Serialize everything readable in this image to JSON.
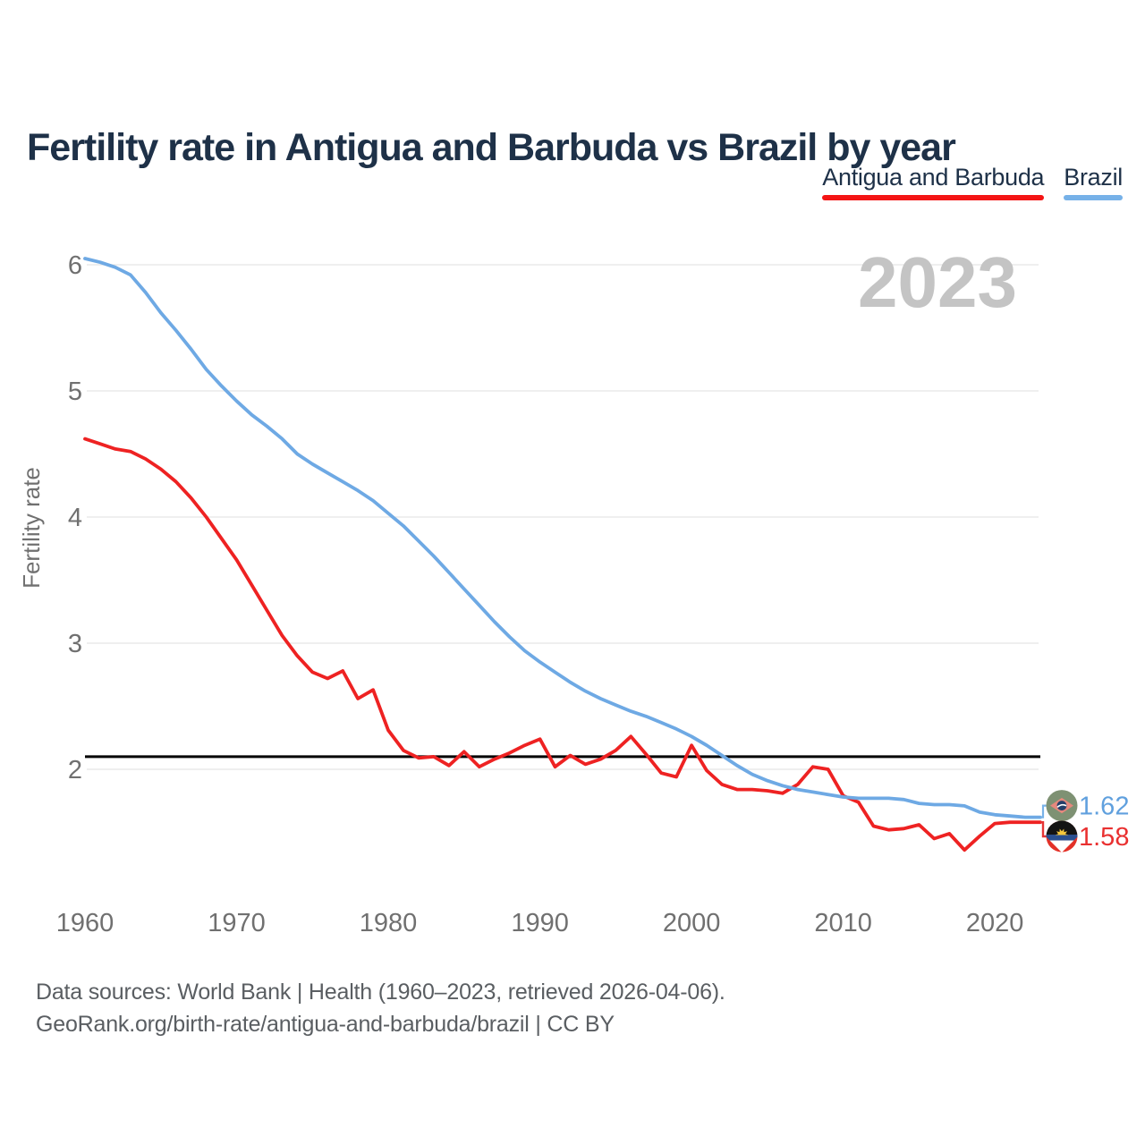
{
  "header": {
    "title": "Fertility rate in Antigua and Barbuda vs Brazil by year"
  },
  "legend": [
    {
      "label": "Antigua and Barbuda",
      "underline_color": "#f41414"
    },
    {
      "label": "Brazil",
      "underline_color": "#76b1e8"
    }
  ],
  "watermark": {
    "text": "2023",
    "color": "#c4c4c4"
  },
  "chart_data": {
    "type": "line",
    "title": "Fertility rate in Antigua and Barbuda vs Brazil by year",
    "xlabel": "",
    "ylabel": "Fertility rate",
    "x_ticks": [
      "1960",
      "1970",
      "1980",
      "1990",
      "2000",
      "2010",
      "2020"
    ],
    "y_ticks": [
      "2",
      "3",
      "4",
      "5",
      "6"
    ],
    "xlim": [
      1960,
      2023
    ],
    "ylim": [
      1.3,
      6.25
    ],
    "grid": "horizontal",
    "legend_position": "top-right",
    "reference_line": {
      "value": 2.1,
      "color": "#000000",
      "meaning": "replacement-level fertility"
    },
    "years": [
      1960,
      1961,
      1962,
      1963,
      1964,
      1965,
      1966,
      1967,
      1968,
      1969,
      1970,
      1971,
      1972,
      1973,
      1974,
      1975,
      1976,
      1977,
      1978,
      1979,
      1980,
      1981,
      1982,
      1983,
      1984,
      1985,
      1986,
      1987,
      1988,
      1989,
      1990,
      1991,
      1992,
      1993,
      1994,
      1995,
      1996,
      1997,
      1998,
      1999,
      2000,
      2001,
      2002,
      2003,
      2004,
      2005,
      2006,
      2007,
      2008,
      2009,
      2010,
      2011,
      2012,
      2013,
      2014,
      2015,
      2016,
      2017,
      2018,
      2019,
      2020,
      2021,
      2022,
      2023
    ],
    "series": [
      {
        "name": "Antigua and Barbuda",
        "color": "#ee2222",
        "label_color": "#e93030",
        "end_label": "1.58",
        "flag": "antigua-and-barbuda",
        "values": [
          4.62,
          4.58,
          4.54,
          4.52,
          4.46,
          4.38,
          4.28,
          4.15,
          4.0,
          3.83,
          3.66,
          3.46,
          3.26,
          3.06,
          2.9,
          2.77,
          2.72,
          2.78,
          2.56,
          2.63,
          2.31,
          2.15,
          2.09,
          2.1,
          2.03,
          2.14,
          2.02,
          2.08,
          2.13,
          2.19,
          2.24,
          2.02,
          2.11,
          2.04,
          2.08,
          2.15,
          2.26,
          2.12,
          1.97,
          1.94,
          2.19,
          1.99,
          1.88,
          1.84,
          1.84,
          1.83,
          1.81,
          1.88,
          2.02,
          2.0,
          1.79,
          1.74,
          1.55,
          1.52,
          1.53,
          1.56,
          1.45,
          1.49,
          1.36,
          1.47,
          1.57,
          1.58,
          1.58,
          1.58
        ]
      },
      {
        "name": "Brazil",
        "color": "#6ea9e4",
        "label_color": "#60a0de",
        "end_label": "1.62",
        "flag": "brazil",
        "values": [
          6.05,
          6.02,
          5.98,
          5.92,
          5.78,
          5.62,
          5.48,
          5.33,
          5.17,
          5.04,
          4.92,
          4.81,
          4.72,
          4.62,
          4.5,
          4.42,
          4.35,
          4.28,
          4.21,
          4.13,
          4.03,
          3.93,
          3.81,
          3.69,
          3.56,
          3.43,
          3.3,
          3.17,
          3.05,
          2.94,
          2.85,
          2.77,
          2.69,
          2.62,
          2.56,
          2.51,
          2.46,
          2.42,
          2.37,
          2.32,
          2.26,
          2.19,
          2.11,
          2.03,
          1.96,
          1.91,
          1.87,
          1.84,
          1.82,
          1.8,
          1.78,
          1.77,
          1.77,
          1.77,
          1.76,
          1.73,
          1.72,
          1.72,
          1.71,
          1.66,
          1.64,
          1.63,
          1.62,
          1.62
        ]
      }
    ],
    "style": {
      "grid_color": "#eaeaea",
      "tick_color": "#707070",
      "axis_title_color": "#707070"
    }
  },
  "footer": {
    "line1": "Data sources: World Bank | Health (1960–2023, retrieved 2026-04-06).",
    "line2": "GeoRank.org/birth-rate/antigua-and-barbuda/brazil | CC BY"
  }
}
